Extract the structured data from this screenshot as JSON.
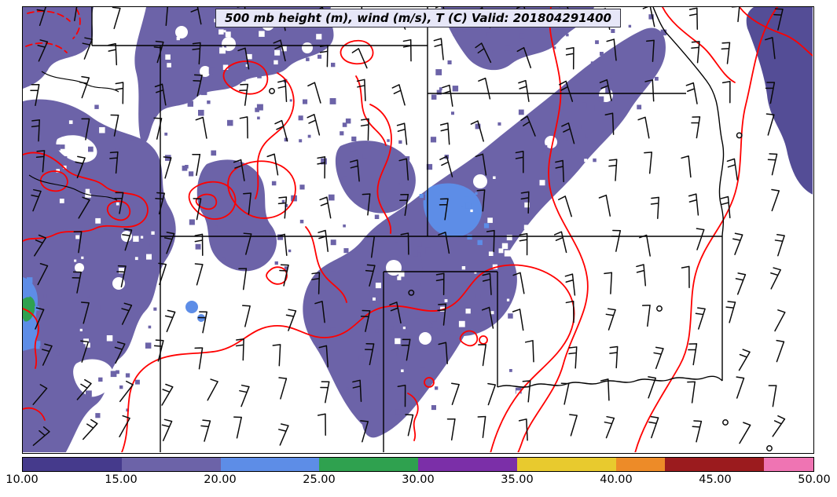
{
  "figure": {
    "title": "500 mb height (m), wind (m/s), T (C) Valid: 201804291400"
  },
  "colorbar": {
    "min": 10,
    "max": 50,
    "ticks": [
      "10.00",
      "15.00",
      "20.00",
      "25.00",
      "30.00",
      "35.00",
      "40.00",
      "45.00",
      "50.00"
    ],
    "segments": [
      {
        "from": 10,
        "to": 15,
        "color": "#453a8c"
      },
      {
        "from": 15,
        "to": 20,
        "color": "#6c63a8"
      },
      {
        "from": 20,
        "to": 25,
        "color": "#5d8de7"
      },
      {
        "from": 25,
        "to": 30,
        "color": "#2fa14f"
      },
      {
        "from": 30,
        "to": 35,
        "color": "#7b2fa8"
      },
      {
        "from": 35,
        "to": 40,
        "color": "#e8ca2e"
      },
      {
        "from": 40,
        "to": 42.5,
        "color": "#ed8b28"
      },
      {
        "from": 42.5,
        "to": 47.5,
        "color": "#9b1b1e"
      },
      {
        "from": 47.5,
        "to": 50,
        "color": "#ef74b3"
      }
    ]
  },
  "map": {
    "fill_colors": {
      "light_purple": "#6c63a8",
      "blue": "#5d8de7",
      "dark_slate": "#544d96",
      "green": "#2fa14f",
      "white": "#ffffff"
    },
    "contour_color": "#ff0000",
    "border_color": "#000000"
  },
  "chart_data": {
    "type": "heatmap",
    "title": "500 mb height (m), wind (m/s), T (C) Valid: 201804291400",
    "colorbar_ticks": [
      10,
      15,
      20,
      25,
      30,
      35,
      40,
      45,
      50
    ],
    "colorbar_range": [
      10,
      50
    ],
    "legend_position": "bottom",
    "overlays": [
      "filled wind speed (m/s)",
      "red temperature contours (C)",
      "wind barbs",
      "state borders"
    ]
  }
}
